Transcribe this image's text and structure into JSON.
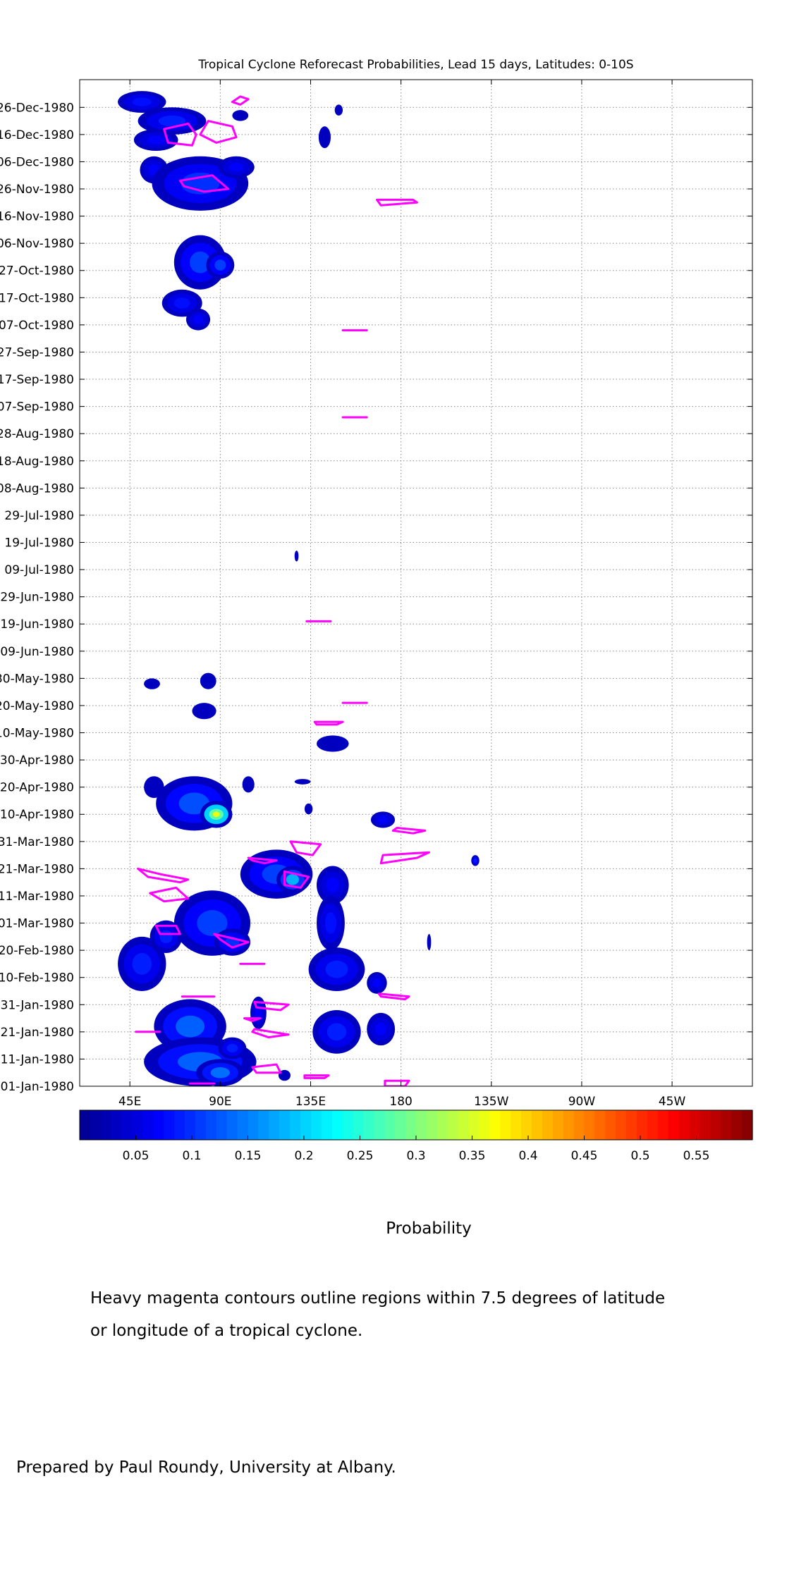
{
  "chart_data": {
    "type": "heatmap",
    "title": "Tropical Cyclone Reforecast Probabilities, Lead 15 days, Latitudes: 0-10S",
    "xlabel": "",
    "ylabel": "",
    "x_ticks": [
      {
        "label": "45E",
        "lon": 45
      },
      {
        "label": "90E",
        "lon": 90
      },
      {
        "label": "135E",
        "lon": 135
      },
      {
        "label": "180",
        "lon": 180
      },
      {
        "label": "135W",
        "lon": 225
      },
      {
        "label": "90W",
        "lon": 270
      },
      {
        "label": "45W",
        "lon": 315
      }
    ],
    "xlim": [
      20,
      355
    ],
    "y_ticks": [
      {
        "label": "26-Dec-1980",
        "day": 360
      },
      {
        "label": "16-Dec-1980",
        "day": 350
      },
      {
        "label": "06-Dec-1980",
        "day": 340
      },
      {
        "label": "26-Nov-1980",
        "day": 330
      },
      {
        "label": "16-Nov-1980",
        "day": 320
      },
      {
        "label": "06-Nov-1980",
        "day": 310
      },
      {
        "label": "27-Oct-1980",
        "day": 300
      },
      {
        "label": "17-Oct-1980",
        "day": 290
      },
      {
        "label": "07-Oct-1980",
        "day": 280
      },
      {
        "label": "27-Sep-1980",
        "day": 270
      },
      {
        "label": "17-Sep-1980",
        "day": 260
      },
      {
        "label": "07-Sep-1980",
        "day": 250
      },
      {
        "label": "28-Aug-1980",
        "day": 240
      },
      {
        "label": "18-Aug-1980",
        "day": 230
      },
      {
        "label": "08-Aug-1980",
        "day": 220
      },
      {
        "label": "29-Jul-1980",
        "day": 210
      },
      {
        "label": "19-Jul-1980",
        "day": 200
      },
      {
        "label": "09-Jul-1980",
        "day": 190
      },
      {
        "label": "29-Jun-1980",
        "day": 180
      },
      {
        "label": "19-Jun-1980",
        "day": 170
      },
      {
        "label": "09-Jun-1980",
        "day": 160
      },
      {
        "label": "30-May-1980",
        "day": 150
      },
      {
        "label": "20-May-1980",
        "day": 140
      },
      {
        "label": "10-May-1980",
        "day": 130
      },
      {
        "label": "30-Apr-1980",
        "day": 120
      },
      {
        "label": "20-Apr-1980",
        "day": 110
      },
      {
        "label": "10-Apr-1980",
        "day": 100
      },
      {
        "label": "31-Mar-1980",
        "day": 90
      },
      {
        "label": "21-Mar-1980",
        "day": 80
      },
      {
        "label": "11-Mar-1980",
        "day": 70
      },
      {
        "label": "01-Mar-1980",
        "day": 60
      },
      {
        "label": "20-Feb-1980",
        "day": 50
      },
      {
        "label": "10-Feb-1980",
        "day": 40
      },
      {
        "label": "31-Jan-1980",
        "day": 30
      },
      {
        "label": "21-Jan-1980",
        "day": 20
      },
      {
        "label": "11-Jan-1980",
        "day": 10
      },
      {
        "label": "01-Jan-1980",
        "day": 0
      }
    ],
    "ylim": [
      0,
      365
    ],
    "grid": true,
    "colorbar": {
      "label": "Probability",
      "range": [
        0,
        0.6
      ],
      "tick_labels": [
        "0.05",
        "0.1",
        "0.15",
        "0.2",
        "0.25",
        "0.3",
        "0.35",
        "0.4",
        "0.45",
        "0.5",
        "0.55"
      ],
      "tick_values": [
        0.05,
        0.1,
        0.15,
        0.2,
        0.25,
        0.3,
        0.35,
        0.4,
        0.45,
        0.5,
        0.55
      ],
      "colormap": "jet",
      "colormap_stops": [
        "#00008f",
        "#0000ff",
        "#00ffff",
        "#ffff00",
        "#ff0000",
        "#800000"
      ]
    },
    "contour_color": "#ff00ff",
    "probability_blobs": [
      {
        "lon": 51,
        "day": 362,
        "rlon": 12,
        "rday": 4,
        "p": 0.08
      },
      {
        "lon": 66,
        "day": 355,
        "rlon": 17,
        "rday": 5,
        "p": 0.09
      },
      {
        "lon": 58,
        "day": 348,
        "rlon": 11,
        "rday": 4,
        "p": 0.07
      },
      {
        "lon": 100,
        "day": 357,
        "rlon": 4,
        "rday": 2,
        "p": 0.05
      },
      {
        "lon": 149,
        "day": 359,
        "rlon": 2,
        "rday": 2,
        "p": 0.04
      },
      {
        "lon": 142,
        "day": 349,
        "rlon": 3,
        "rday": 4,
        "p": 0.05
      },
      {
        "lon": 57,
        "day": 337,
        "rlon": 7,
        "rday": 5,
        "p": 0.07
      },
      {
        "lon": 80,
        "day": 332,
        "rlon": 24,
        "rday": 10,
        "p": 0.1
      },
      {
        "lon": 98,
        "day": 338,
        "rlon": 9,
        "rday": 4,
        "p": 0.07
      },
      {
        "lon": 80,
        "day": 303,
        "rlon": 13,
        "rday": 10,
        "p": 0.11
      },
      {
        "lon": 90,
        "day": 302,
        "rlon": 7,
        "rday": 5,
        "p": 0.11
      },
      {
        "lon": 71,
        "day": 288,
        "rlon": 10,
        "rday": 5,
        "p": 0.08
      },
      {
        "lon": 79,
        "day": 282,
        "rlon": 6,
        "rday": 4,
        "p": 0.07
      },
      {
        "lon": 128,
        "day": 195,
        "rlon": 1,
        "rday": 2,
        "p": 0.04
      },
      {
        "lon": 56,
        "day": 148,
        "rlon": 4,
        "rday": 2,
        "p": 0.05
      },
      {
        "lon": 84,
        "day": 149,
        "rlon": 4,
        "rday": 3,
        "p": 0.06
      },
      {
        "lon": 82,
        "day": 138,
        "rlon": 6,
        "rday": 3,
        "p": 0.06
      },
      {
        "lon": 146,
        "day": 126,
        "rlon": 8,
        "rday": 3,
        "p": 0.06
      },
      {
        "lon": 77,
        "day": 104,
        "rlon": 19,
        "rday": 10,
        "p": 0.12
      },
      {
        "lon": 88,
        "day": 100,
        "rlon": 8,
        "rday": 5,
        "p": 0.36
      },
      {
        "lon": 57,
        "day": 110,
        "rlon": 5,
        "rday": 4,
        "p": 0.06
      },
      {
        "lon": 104,
        "day": 111,
        "rlon": 3,
        "rday": 3,
        "p": 0.06
      },
      {
        "lon": 131,
        "day": 112,
        "rlon": 4,
        "rday": 1,
        "p": 0.04
      },
      {
        "lon": 134,
        "day": 102,
        "rlon": 2,
        "rday": 2,
        "p": 0.04
      },
      {
        "lon": 171,
        "day": 98,
        "rlon": 6,
        "rday": 3,
        "p": 0.07
      },
      {
        "lon": 217,
        "day": 83,
        "rlon": 2,
        "rday": 2,
        "p": 0.09
      },
      {
        "lon": 118,
        "day": 78,
        "rlon": 18,
        "rday": 9,
        "p": 0.11
      },
      {
        "lon": 126,
        "day": 76,
        "rlon": 8,
        "rday": 5,
        "p": 0.18
      },
      {
        "lon": 146,
        "day": 74,
        "rlon": 8,
        "rday": 7,
        "p": 0.07
      },
      {
        "lon": 145,
        "day": 60,
        "rlon": 7,
        "rday": 10,
        "p": 0.08
      },
      {
        "lon": 51,
        "day": 45,
        "rlon": 12,
        "rday": 10,
        "p": 0.09
      },
      {
        "lon": 63,
        "day": 55,
        "rlon": 8,
        "rday": 6,
        "p": 0.09
      },
      {
        "lon": 86,
        "day": 60,
        "rlon": 19,
        "rday": 12,
        "p": 0.11
      },
      {
        "lon": 96,
        "day": 53,
        "rlon": 9,
        "rday": 5,
        "p": 0.1
      },
      {
        "lon": 148,
        "day": 43,
        "rlon": 14,
        "rday": 8,
        "p": 0.09
      },
      {
        "lon": 168,
        "day": 38,
        "rlon": 5,
        "rday": 4,
        "p": 0.07
      },
      {
        "lon": 148,
        "day": 20,
        "rlon": 12,
        "rday": 8,
        "p": 0.09
      },
      {
        "lon": 170,
        "day": 21,
        "rlon": 7,
        "rday": 6,
        "p": 0.07
      },
      {
        "lon": 75,
        "day": 22,
        "rlon": 18,
        "rday": 10,
        "p": 0.13
      },
      {
        "lon": 80,
        "day": 9,
        "rlon": 28,
        "rday": 9,
        "p": 0.13
      },
      {
        "lon": 90,
        "day": 5,
        "rlon": 12,
        "rday": 5,
        "p": 0.14
      },
      {
        "lon": 96,
        "day": 14,
        "rlon": 7,
        "rday": 4,
        "p": 0.09
      },
      {
        "lon": 109,
        "day": 27,
        "rlon": 4,
        "rday": 6,
        "p": 0.07
      },
      {
        "lon": 122,
        "day": 4,
        "rlon": 3,
        "rday": 2,
        "p": 0.05
      },
      {
        "lon": 194,
        "day": 53,
        "rlon": 1,
        "rday": 3,
        "p": 0.05
      }
    ],
    "contours": [
      [
        [
          62,
          352
        ],
        [
          74,
          354
        ],
        [
          78,
          350
        ],
        [
          76,
          346
        ],
        [
          64,
          347
        ]
      ],
      [
        [
          84,
          355
        ],
        [
          96,
          353
        ],
        [
          98,
          349
        ],
        [
          88,
          347
        ],
        [
          80,
          350
        ]
      ],
      [
        [
          100,
          361
        ],
        [
          104,
          363
        ],
        [
          100,
          364
        ],
        [
          96,
          362
        ]
      ],
      [
        [
          70,
          333
        ],
        [
          86,
          335
        ],
        [
          94,
          330
        ],
        [
          82,
          329
        ],
        [
          72,
          331
        ]
      ],
      [
        [
          168,
          326
        ],
        [
          186,
          326
        ],
        [
          188,
          325
        ],
        [
          170,
          324
        ]
      ],
      [
        [
          151,
          278
        ],
        [
          163,
          278
        ]
      ],
      [
        [
          151,
          246
        ],
        [
          163,
          246
        ]
      ],
      [
        [
          133,
          171
        ],
        [
          145,
          171
        ]
      ],
      [
        [
          151,
          141
        ],
        [
          163,
          141
        ]
      ],
      [
        [
          137,
          134
        ],
        [
          151,
          134
        ],
        [
          148,
          133
        ],
        [
          138,
          133
        ]
      ],
      [
        [
          178,
          95
        ],
        [
          192,
          94
        ],
        [
          186,
          93
        ],
        [
          176,
          94
        ]
      ],
      [
        [
          125,
          90
        ],
        [
          140,
          89
        ],
        [
          136,
          85
        ],
        [
          128,
          86
        ]
      ],
      [
        [
          104,
          84
        ],
        [
          118,
          83
        ],
        [
          112,
          82
        ],
        [
          106,
          83
        ]
      ],
      [
        [
          171,
          85
        ],
        [
          194,
          86
        ],
        [
          188,
          84
        ],
        [
          170,
          82
        ]
      ],
      [
        [
          122,
          79
        ],
        [
          134,
          77
        ],
        [
          130,
          73
        ],
        [
          122,
          74
        ]
      ],
      [
        [
          49,
          80
        ],
        [
          60,
          78
        ],
        [
          74,
          76
        ],
        [
          70,
          75
        ],
        [
          54,
          77
        ]
      ],
      [
        [
          55,
          71
        ],
        [
          68,
          73
        ],
        [
          74,
          69
        ],
        [
          62,
          68
        ]
      ],
      [
        [
          58,
          59
        ],
        [
          68,
          59
        ],
        [
          70,
          56
        ],
        [
          60,
          56
        ]
      ],
      [
        [
          87,
          56
        ],
        [
          104,
          53
        ],
        [
          96,
          51
        ],
        [
          90,
          54
        ]
      ],
      [
        [
          100,
          45
        ],
        [
          112,
          45
        ]
      ],
      [
        [
          169,
          34
        ],
        [
          184,
          33
        ],
        [
          182,
          32
        ],
        [
          170,
          33
        ]
      ],
      [
        [
          71,
          33
        ],
        [
          87,
          33
        ]
      ],
      [
        [
          107,
          31
        ],
        [
          124,
          30
        ],
        [
          120,
          28
        ],
        [
          108,
          29
        ]
      ],
      [
        [
          102,
          25
        ],
        [
          110,
          25
        ],
        [
          106,
          24
        ]
      ],
      [
        [
          107,
          21
        ],
        [
          124,
          19
        ],
        [
          114,
          18
        ],
        [
          106,
          20
        ]
      ],
      [
        [
          48,
          20
        ],
        [
          60,
          20
        ]
      ],
      [
        [
          106,
          7
        ],
        [
          118,
          8
        ],
        [
          120,
          5
        ],
        [
          108,
          5
        ]
      ],
      [
        [
          132,
          4
        ],
        [
          144,
          4
        ],
        [
          142,
          3
        ],
        [
          132,
          3
        ]
      ],
      [
        [
          172,
          2
        ],
        [
          184,
          2
        ],
        [
          182,
          0
        ],
        [
          172,
          0
        ]
      ],
      [
        [
          75,
          1
        ],
        [
          87,
          1
        ]
      ]
    ]
  },
  "caption_lines": [
    "Heavy magenta contours outline regions within 7.5 degrees of latitude",
    "or longitude of a tropical cyclone."
  ],
  "credit": "Prepared by Paul Roundy, University at Albany."
}
